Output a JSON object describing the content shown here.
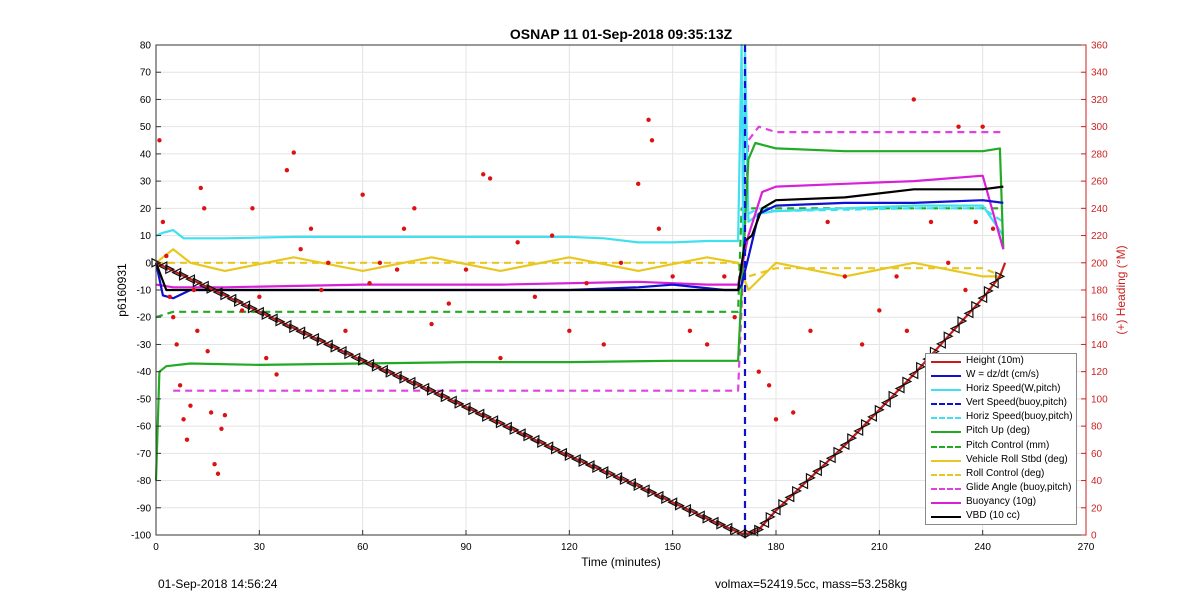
{
  "chart_data": {
    "type": "line",
    "title": "OSNAP 11 01-Sep-2018 09:35:13Z",
    "xlabel": "Time (minutes)",
    "ylabel": "p6160931",
    "y2label": "(+) Heading (°M)",
    "xlim": [
      0,
      270
    ],
    "ylim": [
      -100,
      80
    ],
    "y2lim": [
      0,
      360
    ],
    "xticks": [
      0,
      30,
      60,
      90,
      120,
      150,
      180,
      210,
      240,
      270
    ],
    "yticks": [
      -100,
      -90,
      -80,
      -70,
      -60,
      -50,
      -40,
      -30,
      -20,
      -10,
      0,
      10,
      20,
      30,
      40,
      50,
      60,
      70,
      80
    ],
    "y2ticks": [
      0,
      20,
      40,
      60,
      80,
      100,
      120,
      140,
      160,
      180,
      200,
      220,
      240,
      260,
      280,
      300,
      320,
      340,
      360
    ],
    "grid": true,
    "legend_position": "bottom-right",
    "colors": {
      "height": "#cc1a1a",
      "w": "#1010d0",
      "horiz_speed": "#40e0f0",
      "vert_speed_buoy": "#1010d0",
      "horiz_speed_buoy": "#40e0f0",
      "pitch_up": "#22aa22",
      "pitch_control": "#22aa22",
      "roll": "#e8c820",
      "roll_control": "#e8c820",
      "glide_angle": "#e040e0",
      "buoyancy": "#d820d8",
      "vbd": "#000000",
      "heading": "#dd1111",
      "right_axis": "#cc2222"
    },
    "legend": [
      {
        "label": "Height (10m)",
        "color": "#cc1a1a",
        "style": "solid"
      },
      {
        "label": "W = dz/dt (cm/s)",
        "color": "#1010d0",
        "style": "solid"
      },
      {
        "label": "Horiz Speed(W,pitch)",
        "color": "#40e0f0",
        "style": "solid"
      },
      {
        "label": "Vert Speed(buoy,pitch)",
        "color": "#1010d0",
        "style": "dashed"
      },
      {
        "label": "Horiz Speed(buoy,pitch)",
        "color": "#40e0f0",
        "style": "dashed"
      },
      {
        "label": "Pitch Up (deg)",
        "color": "#22aa22",
        "style": "solid"
      },
      {
        "label": "Pitch Control (mm)",
        "color": "#22aa22",
        "style": "dashed"
      },
      {
        "label": "Vehicle Roll Stbd (deg)",
        "color": "#e8c820",
        "style": "solid"
      },
      {
        "label": "Roll Control (deg)",
        "color": "#e8c820",
        "style": "dashed"
      },
      {
        "label": "Glide Angle (buoy,pitch)",
        "color": "#e040e0",
        "style": "dashed"
      },
      {
        "label": "Buoyancy (10g)",
        "color": "#d820d8",
        "style": "solid"
      },
      {
        "label": "VBD (10 cc)",
        "color": "#000000",
        "style": "solid"
      }
    ],
    "series": [
      {
        "name": "Height (10m)",
        "key": "height",
        "x": [
          0,
          20,
          40,
          60,
          80,
          100,
          120,
          140,
          160,
          170,
          172,
          175,
          180,
          190,
          200,
          210,
          220,
          230,
          240,
          245,
          246.5
        ],
        "y": [
          0,
          -12,
          -24,
          -36,
          -47,
          -59,
          -71,
          -82,
          -94,
          -99.5,
          -99.5,
          -98,
          -91,
          -79,
          -67,
          -54,
          -41,
          -27,
          -13,
          -5,
          0
        ]
      },
      {
        "name": "W = dz/dt (cm/s)",
        "key": "w",
        "x": [
          0,
          2,
          5,
          10,
          30,
          60,
          90,
          120,
          140,
          150,
          165,
          169,
          170,
          172,
          175,
          180,
          200,
          220,
          240,
          246
        ],
        "y": [
          0,
          -12,
          -13,
          -10,
          -10,
          -10,
          -10,
          -10,
          -9,
          -8,
          -10,
          -10,
          -8,
          2,
          18,
          21,
          22,
          22,
          23,
          22
        ]
      },
      {
        "name": "Horiz Speed(W,pitch)",
        "key": "horiz_speed",
        "x": [
          0,
          2,
          5,
          8,
          20,
          40,
          60,
          90,
          120,
          130,
          140,
          150,
          160,
          169,
          170,
          170.5,
          171,
          172,
          175,
          180,
          200,
          220,
          240,
          246
        ],
        "y": [
          10,
          11,
          12,
          9,
          9,
          9.5,
          9.5,
          9.5,
          9.5,
          9,
          7.5,
          7.5,
          8,
          8,
          80,
          0,
          80,
          15,
          18,
          19,
          20,
          21,
          21,
          10
        ]
      },
      {
        "name": "Vert Speed(buoy,pitch)",
        "key": "vert_speed_buoy",
        "x": [
          171,
          171,
          171
        ],
        "y": [
          80,
          -30,
          -100
        ]
      },
      {
        "name": "Horiz Speed(buoy,pitch)",
        "key": "horiz_speed_buoy",
        "x": [
          172,
          175,
          180,
          200,
          220,
          240,
          246
        ],
        "y": [
          18,
          20,
          19,
          19.5,
          20,
          20,
          15
        ]
      },
      {
        "name": "Pitch Up (deg)",
        "key": "pitch_up",
        "x": [
          0,
          1,
          3,
          10,
          30,
          60,
          90,
          120,
          150,
          169,
          170,
          172,
          174,
          180,
          200,
          220,
          240,
          245,
          246
        ],
        "y": [
          -80,
          -40,
          -38,
          -37,
          -37.5,
          -37,
          -36.5,
          -36.5,
          -36,
          -36,
          -10,
          38,
          44,
          42,
          41,
          41,
          41,
          42,
          5
        ]
      },
      {
        "name": "Pitch Control (mm)",
        "key": "pitch_control",
        "x": [
          0,
          5,
          60,
          120,
          169,
          170,
          172,
          246
        ],
        "y": [
          -20,
          -18,
          -18,
          -18,
          -18,
          20,
          20,
          20
        ]
      },
      {
        "name": "Vehicle Roll Stbd (deg)",
        "key": "roll",
        "x": [
          0,
          5,
          10,
          20,
          40,
          60,
          80,
          100,
          120,
          140,
          160,
          169,
          172,
          180,
          200,
          220,
          240,
          246
        ],
        "y": [
          0,
          5,
          0,
          -3,
          2,
          -3,
          2,
          -3,
          2,
          -3,
          2,
          0,
          -10,
          0,
          -5,
          0,
          -5,
          -5
        ]
      },
      {
        "name": "Roll Control (deg)",
        "key": "roll_control",
        "x": [
          0,
          10,
          40,
          80,
          120,
          160,
          169,
          172,
          180,
          200,
          220,
          240,
          246
        ],
        "y": [
          0,
          0,
          0,
          0,
          0,
          0,
          0,
          -5,
          -2,
          -2,
          -2,
          -2,
          -5
        ]
      },
      {
        "name": "Glide Angle (buoy,pitch)",
        "key": "glide_angle",
        "x": [
          5,
          30,
          60,
          90,
          120,
          150,
          169,
          172,
          175,
          180,
          200,
          220,
          240,
          246
        ],
        "y": [
          -47,
          -47,
          -47,
          -47,
          -47,
          -47,
          -47,
          45,
          50,
          48,
          48,
          48,
          48,
          48
        ]
      },
      {
        "name": "Buoyancy (10g)",
        "key": "buoyancy",
        "x": [
          0,
          5,
          20,
          60,
          100,
          140,
          160,
          169,
          172,
          176,
          180,
          200,
          220,
          240,
          246
        ],
        "y": [
          -8,
          -9,
          -9,
          -8,
          -8,
          -7,
          -8,
          -8,
          10,
          26,
          28,
          29,
          30,
          32,
          5
        ]
      },
      {
        "name": "VBD (10 cc)",
        "key": "vbd",
        "x": [
          0,
          3,
          20,
          60,
          100,
          140,
          169,
          171,
          173,
          176,
          180,
          200,
          220,
          240,
          246
        ],
        "y": [
          0,
          -10,
          -10,
          -10,
          -10,
          -10,
          -10,
          8,
          10,
          20,
          23,
          24,
          27,
          27,
          28
        ]
      }
    ],
    "heading_points": {
      "name": "(+) Heading (°M)",
      "x": [
        1,
        2,
        3,
        4,
        5,
        6,
        7,
        8,
        9,
        10,
        11,
        12,
        13,
        14,
        15,
        16,
        17,
        18,
        19,
        20,
        25,
        28,
        30,
        32,
        35,
        38,
        40,
        42,
        45,
        48,
        50,
        55,
        60,
        62,
        65,
        70,
        72,
        75,
        80,
        85,
        90,
        95,
        97,
        100,
        105,
        110,
        115,
        120,
        125,
        130,
        135,
        140,
        143,
        144,
        146,
        150,
        155,
        160,
        165,
        168,
        175,
        178,
        180,
        185,
        190,
        195,
        200,
        205,
        210,
        215,
        218,
        220,
        225,
        230,
        233,
        235,
        238,
        240,
        243,
        245
      ],
      "y": [
        290,
        230,
        205,
        175,
        160,
        140,
        110,
        85,
        70,
        95,
        180,
        150,
        255,
        240,
        135,
        90,
        52,
        45,
        78,
        88,
        165,
        240,
        175,
        130,
        118,
        268,
        281,
        210,
        225,
        180,
        200,
        150,
        250,
        185,
        200,
        195,
        225,
        240,
        155,
        170,
        195,
        265,
        262,
        130,
        215,
        175,
        220,
        150,
        185,
        140,
        200,
        258,
        305,
        290,
        225,
        190,
        150,
        140,
        190,
        160,
        120,
        110,
        85,
        90,
        150,
        230,
        190,
        140,
        165,
        190,
        150,
        320,
        230,
        200,
        300,
        180,
        230,
        300,
        225,
        55
      ]
    }
  },
  "footer": {
    "date": "01-Sep-2018 14:56:24",
    "stats": "volmax=52419.5cc, mass=53.258kg"
  }
}
